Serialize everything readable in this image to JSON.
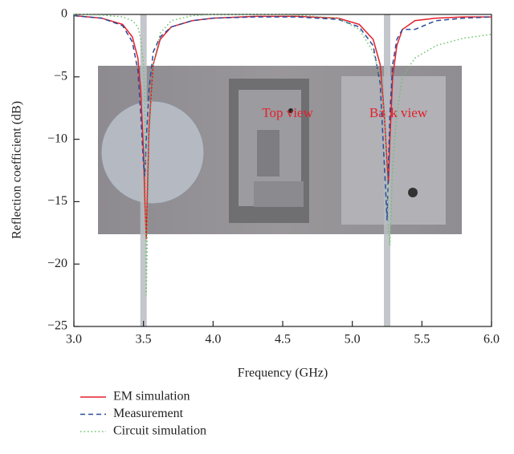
{
  "chart_data": {
    "type": "line",
    "xlabel": "Frequency (GHz)",
    "ylabel": "Reflection coefficient (dB)",
    "annotations": [
      "Top view",
      "Back view"
    ],
    "bands": [
      3.5,
      5.25
    ],
    "x": [
      3.0,
      3.2,
      3.35,
      3.42,
      3.46,
      3.48,
      3.5,
      3.51,
      3.52,
      3.54,
      3.57,
      3.62,
      3.7,
      3.85,
      4.0,
      4.3,
      4.6,
      4.9,
      5.05,
      5.15,
      5.2,
      5.23,
      5.25,
      5.26,
      5.27,
      5.29,
      5.32,
      5.36,
      5.45,
      5.6,
      5.8,
      6.0
    ],
    "series": [
      {
        "name": "EM simulation",
        "color": "#e3202b",
        "dash": "none",
        "values": [
          -0.1,
          -0.3,
          -0.8,
          -1.8,
          -3.5,
          -6,
          -11,
          -15,
          -18,
          -9,
          -4,
          -2,
          -1,
          -0.5,
          -0.3,
          -0.15,
          -0.15,
          -0.3,
          -0.8,
          -2,
          -4,
          -8,
          -12,
          -13.5,
          -10,
          -5,
          -2.5,
          -1.2,
          -0.5,
          -0.3,
          -0.2,
          -0.2
        ]
      },
      {
        "name": "Measurement",
        "color": "#2a4a9a",
        "dash": "6 4",
        "values": [
          -0.1,
          -0.3,
          -0.9,
          -2.2,
          -4.5,
          -8,
          -12,
          -13,
          -10,
          -6,
          -3,
          -1.8,
          -1,
          -0.5,
          -0.3,
          -0.2,
          -0.2,
          -0.4,
          -1,
          -2.5,
          -5.5,
          -12,
          -16.5,
          -12,
          -8,
          -4,
          -2,
          -1.2,
          -1.2,
          -0.5,
          -0.3,
          -0.2
        ]
      },
      {
        "name": "Circuit simulation",
        "color": "#6cc06c",
        "dash": "1.5 3",
        "values": [
          0,
          -0.05,
          -0.2,
          -0.5,
          -1,
          -2,
          -4,
          -7,
          -22.5,
          -10,
          -4,
          -1.5,
          -0.5,
          -0.1,
          0,
          0,
          -0.05,
          -0.3,
          -1.2,
          -3,
          -5,
          -8,
          -13,
          -17,
          -18.5,
          -12,
          -8,
          -5,
          -3.5,
          -2.5,
          -1.9,
          -1.6
        ]
      }
    ],
    "xlim": [
      3.0,
      6.0
    ],
    "xticks": [
      {
        "value": 3.0,
        "label": "3.0"
      },
      3.5,
      {
        "value": 4.0,
        "label": "4.0"
      },
      4.5,
      {
        "value": 5.0,
        "label": "5.0"
      },
      5.5,
      {
        "value": 6.0,
        "label": "6.0"
      }
    ],
    "ylim": [
      -25,
      0
    ],
    "yticks": [
      {
        "value": -25,
        "label": "−25"
      },
      {
        "value": -20,
        "label": "−20"
      },
      {
        "value": -15,
        "label": "−15"
      },
      {
        "value": -10,
        "label": "−10"
      },
      {
        "value": -5,
        "label": "−5"
      },
      0
    ]
  }
}
